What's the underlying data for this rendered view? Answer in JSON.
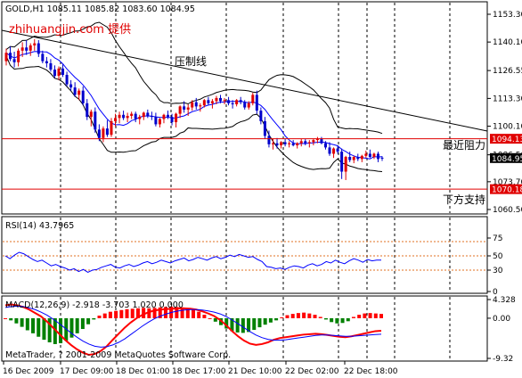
{
  "chart_data": [
    {
      "type": "candlestick",
      "header": "GOLD,H1  1085.11 1085.82 1083.60 1084.95",
      "watermark": "zhihuangjin.com 提供",
      "ylim": [
        1060.5,
        1153.3
      ],
      "yticks": [
        "1153.30",
        "1140.10",
        "1126.55",
        "1113.30",
        "1100.10",
        "1086.50",
        "1073.70",
        "1060.50"
      ],
      "xticks": [
        "16 Dec 2009",
        "17 Dec 09:00",
        "18 Dec 01:00",
        "18 Dec 17:00",
        "21 Dec 10:00",
        "22 Dec 02:00",
        "22 Dec 18:00"
      ],
      "candles": [
        [
          1131.0,
          1137.0,
          1129.0,
          1135.0
        ],
        [
          1135.0,
          1138.0,
          1131.0,
          1132.0
        ],
        [
          1132.0,
          1135.5,
          1128.0,
          1130.5
        ],
        [
          1130.5,
          1137.0,
          1128.5,
          1136.0
        ],
        [
          1136.0,
          1140.0,
          1133.0,
          1137.5
        ],
        [
          1137.5,
          1141.0,
          1134.0,
          1136.0
        ],
        [
          1136.0,
          1139.5,
          1133.5,
          1138.5
        ],
        [
          1138.5,
          1141.5,
          1136.0,
          1139.5
        ],
        [
          1139.5,
          1141.0,
          1133.0,
          1134.5
        ],
        [
          1134.5,
          1136.0,
          1130.0,
          1131.0
        ],
        [
          1131.0,
          1133.0,
          1128.0,
          1130.0
        ],
        [
          1130.0,
          1132.0,
          1126.0,
          1127.0
        ],
        [
          1127.0,
          1129.0,
          1123.0,
          1124.0
        ],
        [
          1124.0,
          1128.5,
          1122.0,
          1127.5
        ],
        [
          1127.5,
          1129.5,
          1123.5,
          1124.5
        ],
        [
          1124.5,
          1126.0,
          1119.0,
          1120.0
        ],
        [
          1120.0,
          1122.0,
          1117.0,
          1118.5
        ],
        [
          1118.5,
          1121.0,
          1114.0,
          1115.0
        ],
        [
          1115.0,
          1118.0,
          1112.5,
          1117.0
        ],
        [
          1117.0,
          1119.0,
          1110.0,
          1111.0
        ],
        [
          1111.0,
          1113.0,
          1103.0,
          1104.5
        ],
        [
          1104.5,
          1108.0,
          1100.0,
          1107.0
        ],
        [
          1107.0,
          1109.0,
          1097.0,
          1098.5
        ],
        [
          1098.5,
          1101.0,
          1093.0,
          1094.5
        ],
        [
          1094.5,
          1100.0,
          1092.5,
          1099.0
        ],
        [
          1099.0,
          1103.0,
          1095.0,
          1096.0
        ],
        [
          1096.0,
          1104.0,
          1095.0,
          1102.5
        ],
        [
          1102.5,
          1106.0,
          1100.0,
          1104.0
        ],
        [
          1104.0,
          1107.0,
          1101.5,
          1105.5
        ],
        [
          1105.5,
          1107.5,
          1103.0,
          1104.0
        ],
        [
          1104.0,
          1106.5,
          1102.0,
          1105.0
        ],
        [
          1105.0,
          1107.0,
          1103.5,
          1106.0
        ],
        [
          1106.0,
          1107.0,
          1102.0,
          1103.5
        ],
        [
          1103.5,
          1105.5,
          1101.0,
          1104.5
        ],
        [
          1104.5,
          1107.0,
          1103.0,
          1106.5
        ],
        [
          1106.5,
          1108.0,
          1104.0,
          1105.0
        ],
        [
          1105.0,
          1107.0,
          1103.0,
          1104.5
        ],
        [
          1104.5,
          1106.5,
          1100.0,
          1101.0
        ],
        [
          1101.0,
          1104.0,
          1099.5,
          1103.5
        ],
        [
          1103.5,
          1106.0,
          1101.5,
          1105.5
        ],
        [
          1105.5,
          1107.5,
          1103.5,
          1104.5
        ],
        [
          1104.5,
          1106.0,
          1100.5,
          1102.0
        ],
        [
          1102.0,
          1106.5,
          1099.5,
          1106.0
        ],
        [
          1106.0,
          1110.0,
          1104.0,
          1109.5
        ],
        [
          1109.5,
          1112.0,
          1106.5,
          1108.0
        ],
        [
          1108.0,
          1110.5,
          1105.0,
          1109.0
        ],
        [
          1109.0,
          1112.5,
          1107.5,
          1111.5
        ],
        [
          1111.5,
          1113.5,
          1108.0,
          1109.5
        ],
        [
          1109.5,
          1111.0,
          1107.0,
          1110.0
        ],
        [
          1110.0,
          1113.0,
          1109.0,
          1112.5
        ],
        [
          1112.5,
          1114.0,
          1110.0,
          1111.0
        ],
        [
          1111.0,
          1113.0,
          1108.5,
          1112.0
        ],
        [
          1112.0,
          1114.5,
          1110.5,
          1113.5
        ],
        [
          1113.5,
          1115.0,
          1111.0,
          1112.0
        ],
        [
          1112.0,
          1113.5,
          1110.5,
          1112.5
        ],
        [
          1112.5,
          1114.0,
          1110.0,
          1111.0
        ],
        [
          1111.0,
          1112.5,
          1108.5,
          1110.5
        ],
        [
          1110.5,
          1113.0,
          1109.5,
          1112.5
        ],
        [
          1112.5,
          1114.0,
          1110.5,
          1111.5
        ],
        [
          1111.5,
          1112.5,
          1108.0,
          1109.0
        ],
        [
          1109.0,
          1112.0,
          1108.0,
          1111.0
        ],
        [
          1111.0,
          1116.0,
          1110.0,
          1115.0
        ],
        [
          1115.0,
          1117.0,
          1106.0,
          1107.5
        ],
        [
          1107.5,
          1109.0,
          1101.0,
          1102.5
        ],
        [
          1102.5,
          1104.5,
          1094.0,
          1095.5
        ],
        [
          1095.5,
          1098.0,
          1090.0,
          1091.5
        ],
        [
          1091.5,
          1094.0,
          1089.0,
          1092.0
        ],
        [
          1092.0,
          1094.5,
          1089.5,
          1091.0
        ],
        [
          1091.0,
          1093.0,
          1089.5,
          1092.5
        ],
        [
          1092.5,
          1094.0,
          1090.5,
          1091.5
        ],
        [
          1091.5,
          1093.0,
          1090.0,
          1092.0
        ],
        [
          1092.0,
          1093.5,
          1090.5,
          1091.0
        ],
        [
          1091.0,
          1092.5,
          1089.5,
          1092.0
        ],
        [
          1092.0,
          1094.0,
          1090.5,
          1093.0
        ],
        [
          1093.0,
          1094.0,
          1091.0,
          1092.0
        ],
        [
          1092.0,
          1093.5,
          1090.0,
          1092.5
        ],
        [
          1092.5,
          1094.0,
          1091.0,
          1093.5
        ],
        [
          1093.5,
          1095.0,
          1092.0,
          1094.0
        ],
        [
          1094.0,
          1095.0,
          1091.5,
          1092.0
        ],
        [
          1092.0,
          1093.0,
          1089.0,
          1090.0
        ],
        [
          1090.0,
          1092.5,
          1086.0,
          1087.0
        ],
        [
          1087.0,
          1090.0,
          1085.0,
          1089.5
        ],
        [
          1089.5,
          1091.0,
          1087.0,
          1088.0
        ],
        [
          1088.0,
          1089.5,
          1075.0,
          1078.5
        ],
        [
          1078.5,
          1086.0,
          1074.5,
          1085.5
        ],
        [
          1085.5,
          1088.0,
          1083.0,
          1084.0
        ],
        [
          1084.0,
          1086.0,
          1082.5,
          1085.5
        ],
        [
          1085.5,
          1087.0,
          1083.5,
          1084.5
        ],
        [
          1084.5,
          1086.5,
          1083.0,
          1086.0
        ],
        [
          1086.0,
          1088.5,
          1085.0,
          1087.0
        ],
        [
          1087.0,
          1089.0,
          1085.0,
          1085.5
        ],
        [
          1085.5,
          1087.5,
          1084.5,
          1087.0
        ],
        [
          1087.0,
          1088.0,
          1083.0,
          1084.5
        ],
        [
          1085.11,
          1085.82,
          1083.6,
          1084.95
        ]
      ],
      "trendline_label": "压制线",
      "lines": [
        {
          "value": 1094.13,
          "label": "最近阻力",
          "color": "#e00000"
        },
        {
          "value": 1070.18,
          "label": "下方支持",
          "color": "#e00000"
        }
      ],
      "last_price": "1084.95",
      "colors": {
        "bull": "#e00000",
        "bear": "#0000cc",
        "ma": "#0000ff",
        "bands": "#000000"
      }
    },
    {
      "type": "line",
      "header": "RSI(14) 43.7965",
      "ylim": [
        0,
        100
      ],
      "yticks": [
        "75",
        "50",
        "30",
        "0"
      ],
      "levels": [
        70,
        50,
        30
      ],
      "series": [
        {
          "values": [
            50,
            46,
            51,
            55,
            53,
            49,
            45,
            42,
            44,
            40,
            36,
            38,
            35,
            33,
            30,
            32,
            28,
            31,
            27,
            30,
            31,
            34,
            36,
            38,
            34,
            33,
            36,
            38,
            35,
            37,
            40,
            42,
            39,
            41,
            44,
            42,
            40,
            43,
            45,
            47,
            43,
            45,
            48,
            46,
            44,
            47,
            49,
            46,
            48,
            51,
            49,
            52,
            50,
            48,
            49,
            45,
            42,
            35,
            34,
            32,
            33,
            31,
            34,
            36,
            35,
            33,
            37,
            39,
            36,
            38,
            42,
            40,
            44,
            41,
            39,
            43,
            46,
            44,
            41,
            45,
            43,
            44,
            44
          ]
        }
      ]
    },
    {
      "type": "bar",
      "header": "MACD(12,26,9) -2.918 -3.703 1.020 0.000",
      "ylim": [
        -9.32,
        4.33
      ],
      "yticks": [
        "4.328",
        "0.00",
        "-9.32"
      ],
      "histogram": [
        0.0,
        -0.5,
        -1.2,
        -2.0,
        -2.8,
        -3.5,
        -4.3,
        -5.0,
        -5.6,
        -6.0,
        -5.8,
        -5.2,
        -4.5,
        -3.5,
        -2.5,
        -1.4,
        -0.3,
        0.6,
        1.1,
        1.5,
        1.7,
        1.9,
        2.1,
        2.2,
        2.3,
        2.4,
        2.3,
        2.4,
        2.5,
        2.6,
        2.7,
        2.6,
        2.5,
        2.3,
        2.0,
        1.5,
        0.8,
        0.0,
        -0.8,
        -1.6,
        -2.4,
        -3.0,
        -3.3,
        -3.4,
        -3.2,
        -2.7,
        -2.1,
        -1.5,
        -1.0,
        -0.5,
        0.2,
        0.7,
        1.0,
        1.2,
        1.3,
        1.1,
        0.8,
        0.3,
        -0.3,
        -0.9,
        -1.2,
        -1.1,
        -0.7,
        0.3,
        0.8,
        1.1,
        1.2,
        1.1,
        1.0
      ],
      "series": [
        {
          "values": [
            3.0,
            3.2,
            3.0,
            2.6,
            2.0,
            1.2,
            0.4,
            -0.8,
            -2.2,
            -3.6,
            -5.0,
            -6.2,
            -7.2,
            -8.0,
            -8.5,
            -8.3,
            -7.6,
            -6.5,
            -5.0,
            -3.6,
            -2.2,
            -1.0,
            0.0,
            0.8,
            1.4,
            1.8,
            2.0,
            2.1,
            2.2,
            2.3,
            2.3,
            2.2,
            2.0,
            1.6,
            1.1,
            0.5,
            -0.4,
            -1.6,
            -3.0,
            -4.2,
            -5.2,
            -5.9,
            -6.2,
            -6.0,
            -5.6,
            -5.0,
            -4.6,
            -4.4,
            -4.2,
            -4.0,
            -3.8,
            -3.7,
            -3.6,
            -3.7,
            -3.9,
            -4.1,
            -4.3,
            -4.4,
            -4.2,
            -3.9,
            -3.6,
            -3.3,
            -3.0,
            -2.9
          ]
        },
        {
          "values": [
            2.5,
            2.7,
            2.8,
            2.7,
            2.4,
            2.0,
            1.4,
            0.7,
            -0.2,
            -1.2,
            -2.3,
            -3.4,
            -4.4,
            -5.3,
            -6.0,
            -6.5,
            -6.7,
            -6.6,
            -6.2,
            -5.6,
            -4.8,
            -3.8,
            -2.8,
            -1.8,
            -0.9,
            -0.1,
            0.5,
            1.0,
            1.4,
            1.7,
            1.9,
            2.0,
            2.0,
            1.9,
            1.7,
            1.4,
            1.0,
            0.4,
            -0.4,
            -1.3,
            -2.2,
            -3.1,
            -3.9,
            -4.5,
            -4.9,
            -5.1,
            -5.1,
            -5.0,
            -4.8,
            -4.6,
            -4.4,
            -4.2,
            -4.0,
            -3.9,
            -3.9,
            -4.0,
            -4.1,
            -4.2,
            -4.2,
            -4.1,
            -4.0,
            -3.9,
            -3.8,
            -3.7
          ]
        }
      ]
    }
  ],
  "footer_text": "MetaTrader, ? 2001-2009 MetaQuotes Software Corp."
}
